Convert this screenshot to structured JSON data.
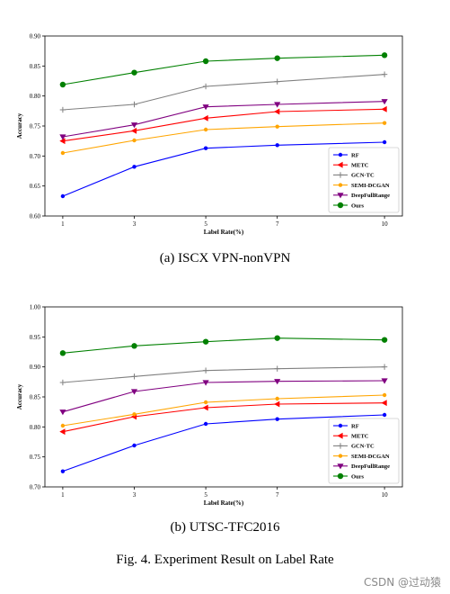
{
  "chart_data": [
    {
      "type": "line",
      "title": "",
      "xlabel": "Label Rate(%)",
      "ylabel": "Accuracy",
      "x": [
        1,
        3,
        5,
        7,
        10
      ],
      "xlim": [
        0.5,
        10.5
      ],
      "ylim": [
        0.6,
        0.9
      ],
      "yticks": [
        "0.60",
        "0.65",
        "0.70",
        "0.75",
        "0.80",
        "0.85",
        "0.90"
      ],
      "xticks": [
        "1",
        "3",
        "5",
        "7",
        "10"
      ],
      "grid": false,
      "legend_position": "lower-right",
      "series": [
        {
          "name": "RF",
          "color": "#0000ff",
          "marker": "point",
          "values": [
            0.633,
            0.682,
            0.713,
            0.718,
            0.723
          ]
        },
        {
          "name": "METC",
          "color": "#ff0000",
          "marker": "triangle-left",
          "values": [
            0.725,
            0.742,
            0.763,
            0.774,
            0.778
          ]
        },
        {
          "name": "GCN-TC",
          "color": "#808080",
          "marker": "plus",
          "values": [
            0.777,
            0.786,
            0.816,
            0.824,
            0.836
          ]
        },
        {
          "name": "SEMI-DCGAN",
          "color": "#ffa500",
          "marker": "point",
          "values": [
            0.705,
            0.726,
            0.744,
            0.749,
            0.755
          ]
        },
        {
          "name": "DeepFullRange",
          "color": "#800080",
          "marker": "triangle-down",
          "values": [
            0.732,
            0.752,
            0.782,
            0.786,
            0.791
          ]
        },
        {
          "name": "Ours",
          "color": "#008000",
          "marker": "circle",
          "values": [
            0.819,
            0.839,
            0.858,
            0.863,
            0.868
          ]
        }
      ]
    },
    {
      "type": "line",
      "title": "",
      "xlabel": "Label Rate(%)",
      "ylabel": "Accuracy",
      "x": [
        1,
        3,
        5,
        7,
        10
      ],
      "xlim": [
        0.5,
        10.5
      ],
      "ylim": [
        0.7,
        1.0
      ],
      "yticks": [
        "0.70",
        "0.75",
        "0.80",
        "0.85",
        "0.90",
        "0.95",
        "1.00"
      ],
      "xticks": [
        "1",
        "3",
        "5",
        "7",
        "10"
      ],
      "grid": false,
      "legend_position": "lower-right",
      "series": [
        {
          "name": "RF",
          "color": "#0000ff",
          "marker": "point",
          "values": [
            0.726,
            0.769,
            0.805,
            0.813,
            0.82
          ]
        },
        {
          "name": "METC",
          "color": "#ff0000",
          "marker": "triangle-left",
          "values": [
            0.792,
            0.817,
            0.832,
            0.838,
            0.84
          ]
        },
        {
          "name": "GCN-TC",
          "color": "#808080",
          "marker": "plus",
          "values": [
            0.874,
            0.884,
            0.894,
            0.897,
            0.9
          ]
        },
        {
          "name": "SEMI-DCGAN",
          "color": "#ffa500",
          "marker": "point",
          "values": [
            0.802,
            0.821,
            0.841,
            0.847,
            0.853
          ]
        },
        {
          "name": "DeepFullRange",
          "color": "#800080",
          "marker": "triangle-down",
          "values": [
            0.825,
            0.859,
            0.874,
            0.876,
            0.877
          ]
        },
        {
          "name": "Ours",
          "color": "#008000",
          "marker": "circle",
          "values": [
            0.923,
            0.935,
            0.942,
            0.948,
            0.945
          ]
        }
      ]
    }
  ],
  "captions": {
    "sub_a": "(a)  ISCX VPN-nonVPN",
    "sub_b": "(b)  UTSC-TFC2016",
    "figure": "Fig. 4.   Experiment Result on Label Rate"
  },
  "watermark": "CSDN @过动猿"
}
